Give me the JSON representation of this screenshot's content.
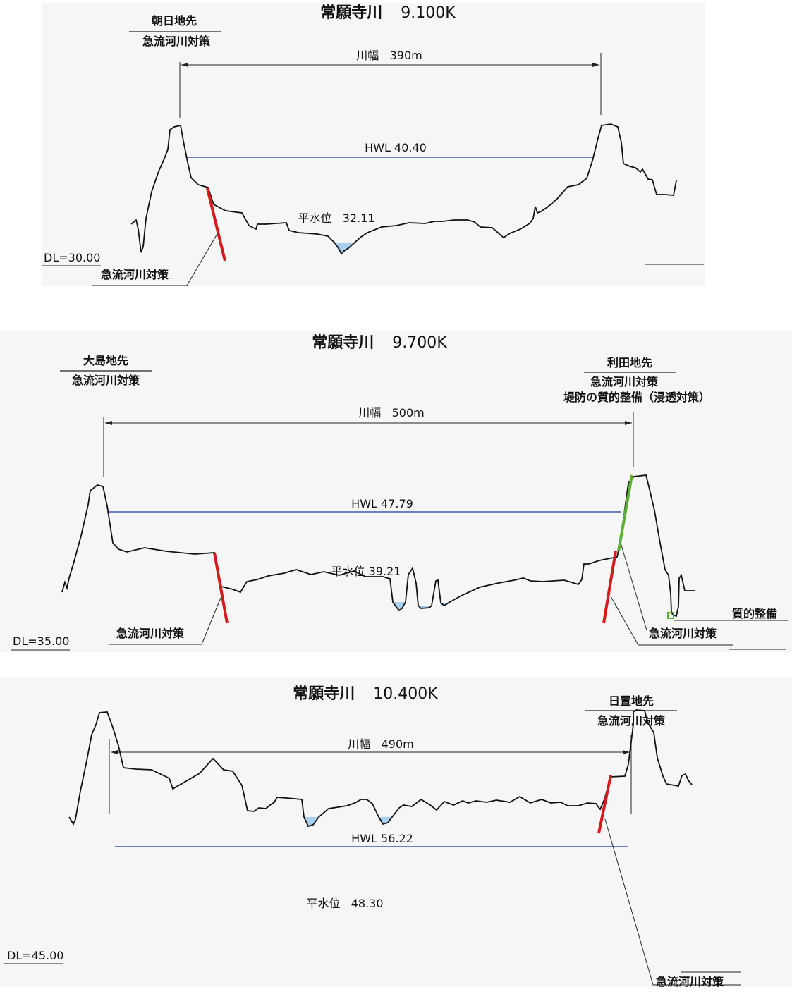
{
  "panels": [
    {
      "title": "常願寺川",
      "km": "9.100K",
      "left_note": {
        "place": "朝日地先",
        "measures": [
          "急流河川対策"
        ]
      },
      "right_note": null,
      "width_label": "川幅",
      "width_value": "390m",
      "hwl_label": "HWL 40.40",
      "nwl_label": "平水位",
      "nwl_value": "32.11",
      "datum": "DL=30.00",
      "callouts": [
        "急流河川対策"
      ]
    },
    {
      "title": "常願寺川",
      "km": "9.700K",
      "left_note": {
        "place": "大島地先",
        "measures": [
          "急流河川対策"
        ]
      },
      "right_note": {
        "place": "利田地先",
        "measures": [
          "急流河川対策",
          "堤防の質的整備（浸透対策）"
        ]
      },
      "width_label": "川幅",
      "width_value": "500m",
      "hwl_label": "HWL 47.79",
      "nwl_label": "平水位",
      "nwl_value": "39.21",
      "datum": "DL=35.00",
      "callouts": [
        "急流河川対策",
        "急流河川対策",
        "質的整備"
      ]
    },
    {
      "title": "常願寺川",
      "km": "10.400K",
      "left_note": null,
      "right_note": {
        "place": "日置地先",
        "measures": [
          "急流河川対策"
        ]
      },
      "width_label": "川幅",
      "width_value": "490m",
      "hwl_label": "HWL 56.22",
      "nwl_label": "平水位",
      "nwl_value": "48.30",
      "datum": "DL=45.00",
      "callouts": [
        "急流河川対策"
      ]
    }
  ],
  "colors": {
    "ground": "#111111",
    "hwl": "#3a5ba8",
    "water": "#a8d0ee",
    "measure_rapid": "#d7191c",
    "measure_levee": "#5bb030",
    "leader": "#222222"
  }
}
